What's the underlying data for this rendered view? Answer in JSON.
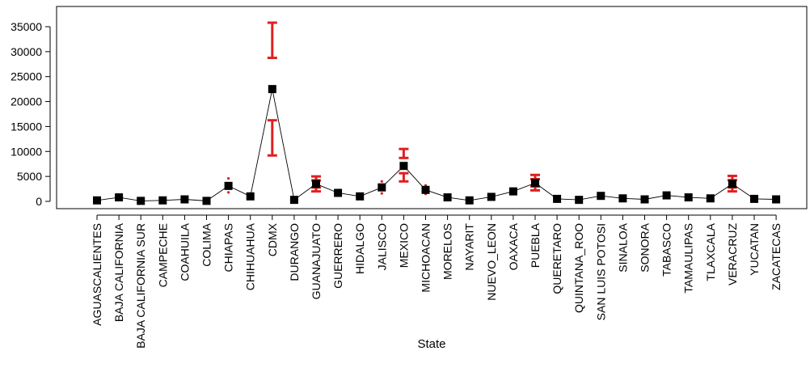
{
  "chart_data": {
    "type": "line",
    "title": "",
    "xlabel": "State",
    "ylabel": "",
    "ylim": [
      0,
      36000
    ],
    "yticks": [
      0,
      5000,
      10000,
      15000,
      20000,
      25000,
      30000,
      35000
    ],
    "grid": false,
    "legend": "none",
    "colors": {
      "line": "#000000",
      "marker": "#000000",
      "interval": "#e02020"
    },
    "categories": [
      "AGUASCALIENTES",
      "BAJA CALIFORNIA",
      "BAJA CALIFORNIA SUR",
      "CAMPECHE",
      "COAHUILA",
      "COLIMA",
      "CHIAPAS",
      "CHIHUAHUA",
      "CDMX",
      "DURANGO",
      "GUANAJUATO",
      "GUERRERO",
      "HIDALGO",
      "JALISCO",
      "MEXICO",
      "MICHOACAN",
      "MORELOS",
      "NAYARIT",
      "NUEVO_LEON",
      "OAXACA",
      "PUEBLA",
      "QUERETARO",
      "QUINTANA_ROO",
      "SAN LUIS POTOSI",
      "SINALOA",
      "SONORA",
      "TABASCO",
      "TAMAULIPAS",
      "TLAXCALA",
      "VERACRUZ",
      "YUCATAN",
      "ZACATECAS"
    ],
    "values": [
      200,
      800,
      100,
      200,
      400,
      100,
      3100,
      1000,
      22500,
      300,
      3500,
      1700,
      1000,
      2800,
      7100,
      2300,
      800,
      200,
      900,
      2000,
      3700,
      500,
      300,
      1100,
      600,
      400,
      1200,
      800,
      600,
      3500,
      500,
      400
    ],
    "lower": [
      150,
      700,
      80,
      150,
      300,
      80,
      1800,
      800,
      9200,
      250,
      2000,
      1300,
      800,
      1600,
      4000,
      1500,
      600,
      150,
      700,
      1600,
      2200,
      400,
      250,
      900,
      500,
      300,
      1000,
      600,
      500,
      2000,
      400,
      300
    ],
    "upper": [
      250,
      900,
      120,
      250,
      500,
      120,
      4600,
      1200,
      35800,
      350,
      5000,
      2200,
      1200,
      4000,
      10500,
      3200,
      1000,
      250,
      1100,
      2500,
      5300,
      600,
      350,
      1300,
      700,
      500,
      1400,
      1000,
      700,
      5100,
      600,
      500
    ]
  }
}
